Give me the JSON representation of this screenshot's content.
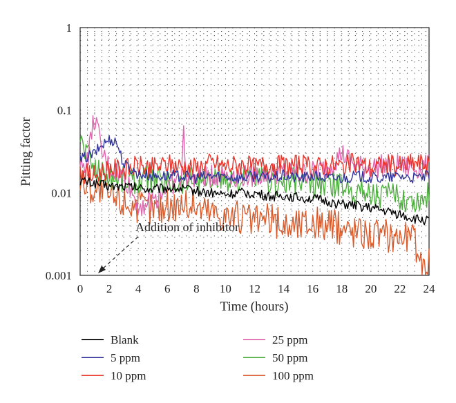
{
  "chart_data": {
    "type": "line",
    "xlabel": "Time (hours)",
    "ylabel": "Pitting factor",
    "xlim": [
      0,
      24
    ],
    "ylim": [
      0.001,
      1
    ],
    "yscale": "log",
    "grid": "dotted",
    "x_ticks": [
      "0",
      "2",
      "4",
      "6",
      "8",
      "10",
      "12",
      "14",
      "16",
      "18",
      "20",
      "22",
      "24"
    ],
    "y_ticks": [
      "0.001",
      "0.01",
      "0.1",
      "1"
    ],
    "legend_position": "bottom",
    "annotation": {
      "text": "Addition of inhibitor",
      "target": {
        "x": 1,
        "y": 0.001
      }
    },
    "series": [
      {
        "name": "Blank",
        "color": "#000000",
        "x": [
          0,
          1,
          2,
          3,
          4,
          5,
          6,
          7,
          8,
          9,
          10,
          11,
          12,
          13,
          14,
          15,
          16,
          17,
          18,
          19,
          20,
          21,
          22,
          23,
          24
        ],
        "y": [
          0.014,
          0.013,
          0.012,
          0.012,
          0.0115,
          0.011,
          0.0115,
          0.0112,
          0.0105,
          0.01,
          0.0095,
          0.01,
          0.0098,
          0.009,
          0.0092,
          0.0088,
          0.0085,
          0.0078,
          0.0072,
          0.007,
          0.0065,
          0.006,
          0.0055,
          0.0048,
          0.0046
        ]
      },
      {
        "name": "5 ppm",
        "color": "#33339c",
        "x": [
          0,
          1,
          1.5,
          2,
          2.5,
          3,
          4,
          5,
          6,
          7,
          8,
          9,
          10,
          11,
          12,
          13,
          14,
          15,
          16,
          17,
          18,
          19,
          20,
          21,
          22,
          23,
          24
        ],
        "y": [
          0.025,
          0.03,
          0.038,
          0.044,
          0.042,
          0.022,
          0.017,
          0.016,
          0.016,
          0.016,
          0.015,
          0.016,
          0.016,
          0.015,
          0.016,
          0.015,
          0.016,
          0.015,
          0.016,
          0.015,
          0.015,
          0.016,
          0.015,
          0.015,
          0.016,
          0.015,
          0.016
        ]
      },
      {
        "name": "10 ppm",
        "color": "#e8332a",
        "x": [
          0,
          1,
          2,
          3,
          4,
          5,
          6,
          7,
          8,
          9,
          10,
          11,
          12,
          13,
          14,
          15,
          16,
          17,
          18,
          19,
          20,
          21,
          22,
          23,
          24
        ],
        "y": [
          0.018,
          0.016,
          0.02,
          0.019,
          0.021,
          0.02,
          0.022,
          0.021,
          0.02,
          0.023,
          0.021,
          0.022,
          0.02,
          0.023,
          0.021,
          0.022,
          0.02,
          0.022,
          0.021,
          0.023,
          0.02,
          0.022,
          0.021,
          0.023,
          0.022
        ]
      },
      {
        "name": "25 ppm",
        "color": "#e066b0",
        "x": [
          0,
          0.5,
          1,
          1.5,
          2,
          3,
          4,
          5,
          6,
          7,
          7.1,
          7.3,
          8,
          9,
          10,
          11,
          12,
          13,
          14,
          15,
          16,
          17,
          18,
          19,
          20,
          21,
          22,
          23,
          24
        ],
        "y": [
          0.02,
          0.025,
          0.085,
          0.03,
          0.02,
          0.016,
          0.007,
          0.008,
          0.012,
          0.015,
          0.06,
          0.016,
          0.015,
          0.016,
          0.017,
          0.016,
          0.016,
          0.017,
          0.018,
          0.017,
          0.018,
          0.02,
          0.03,
          0.021,
          0.02,
          0.022,
          0.021,
          0.02,
          0.021
        ]
      },
      {
        "name": "50 ppm",
        "color": "#4caf3c",
        "x": [
          0,
          1,
          2,
          3,
          4,
          5,
          6,
          7,
          8,
          9,
          10,
          11,
          12,
          13,
          14,
          15,
          16,
          17,
          18,
          19,
          20,
          21,
          22,
          23,
          24
        ],
        "y": [
          0.045,
          0.02,
          0.016,
          0.015,
          0.014,
          0.015,
          0.013,
          0.014,
          0.015,
          0.014,
          0.015,
          0.014,
          0.015,
          0.014,
          0.013,
          0.014,
          0.012,
          0.013,
          0.012,
          0.011,
          0.01,
          0.009,
          0.009,
          0.008,
          0.009
        ]
      },
      {
        "name": "100 ppm",
        "color": "#d95a2b",
        "x": [
          0,
          1,
          2,
          3,
          4,
          5,
          6,
          7,
          8,
          9,
          10,
          11,
          12,
          13,
          14,
          15,
          16,
          17,
          18,
          19,
          20,
          21,
          22,
          23,
          23.5,
          24
        ],
        "y": [
          0.014,
          0.011,
          0.009,
          0.008,
          0.007,
          0.0065,
          0.007,
          0.0075,
          0.007,
          0.006,
          0.0055,
          0.005,
          0.0045,
          0.0048,
          0.004,
          0.0042,
          0.0045,
          0.004,
          0.0038,
          0.0035,
          0.0033,
          0.003,
          0.0032,
          0.0028,
          0.0011,
          0.0017
        ]
      }
    ]
  }
}
